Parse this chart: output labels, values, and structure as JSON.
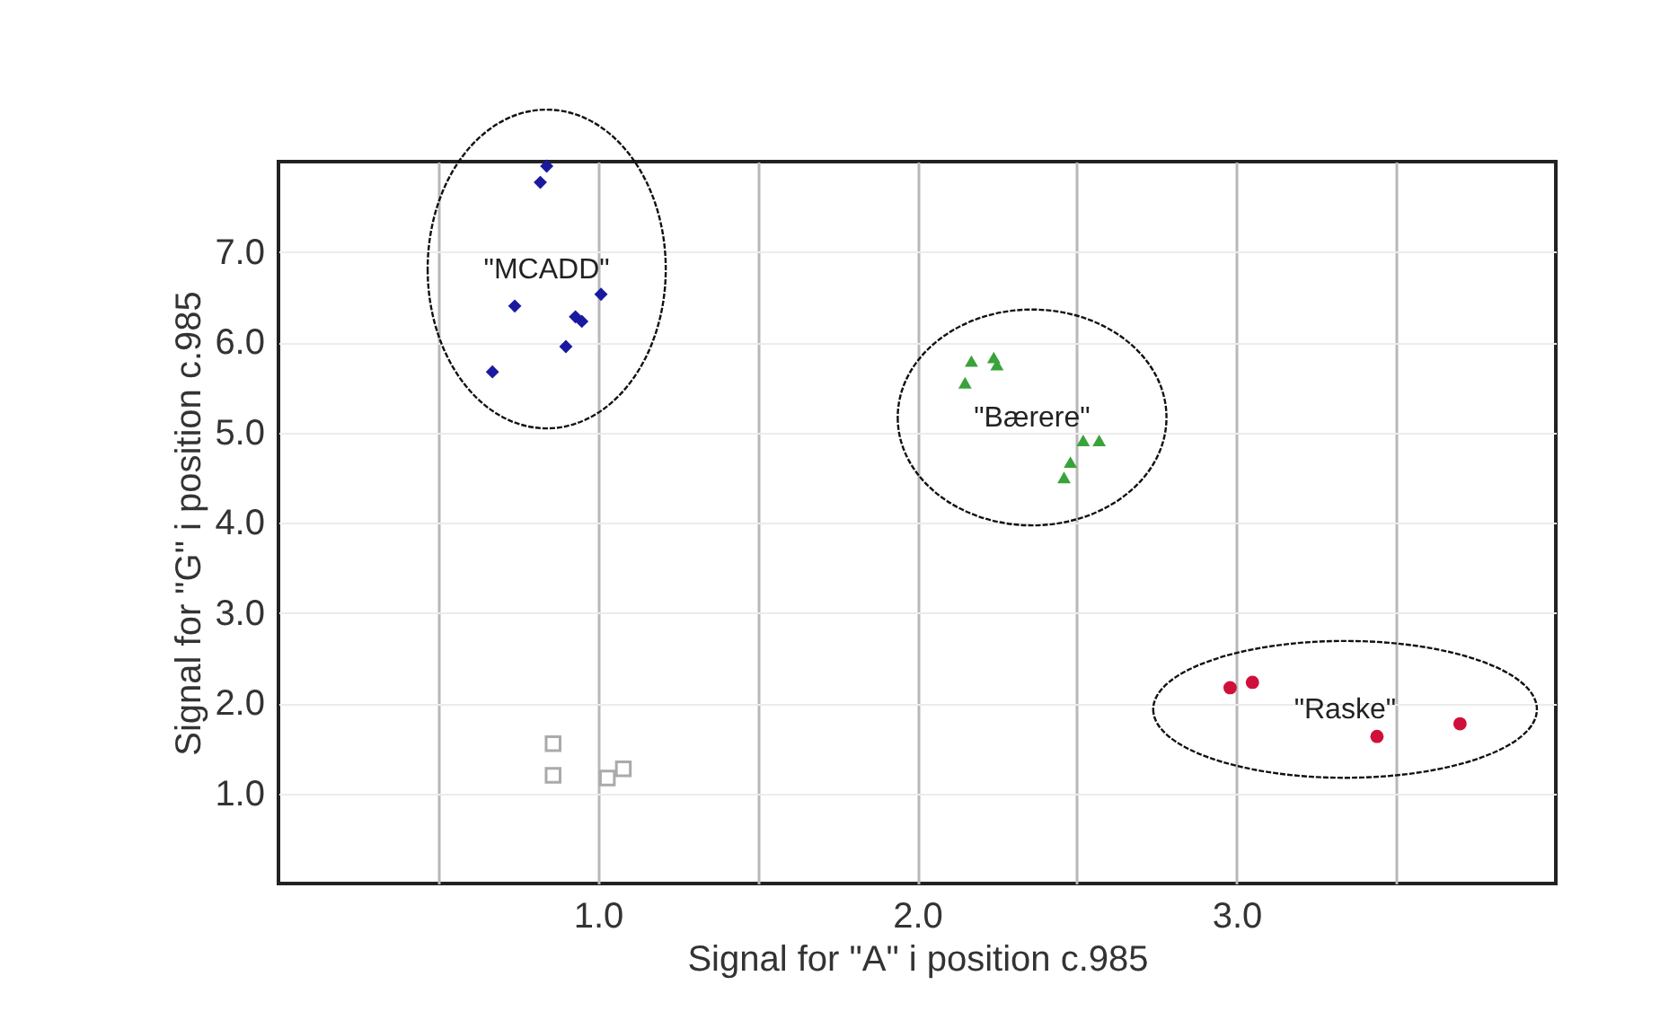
{
  "chart_data": {
    "type": "scatter",
    "xlabel": "Signal for \"A\" i position c.985",
    "ylabel": "Signal for \"G\" i position c.985",
    "xlim": [
      0,
      4
    ],
    "ylim": [
      0,
      8
    ],
    "xticks": [
      {
        "value": 0.5,
        "label": null
      },
      {
        "value": 1,
        "label": "1.0"
      },
      {
        "value": 1.5,
        "label": null
      },
      {
        "value": 2,
        "label": "2.0"
      },
      {
        "value": 2.5,
        "label": null
      },
      {
        "value": 3,
        "label": "3.0"
      },
      {
        "value": 3.5,
        "label": null
      }
    ],
    "yticks": [
      {
        "value": 1,
        "label": "1.0"
      },
      {
        "value": 2,
        "label": "2.0"
      },
      {
        "value": 3,
        "label": "3.0"
      },
      {
        "value": 4,
        "label": "4.0"
      },
      {
        "value": 5,
        "label": "5.0"
      },
      {
        "value": 6,
        "label": "6.0"
      },
      {
        "value": 7,
        "label": "7.0"
      }
    ],
    "grid": true,
    "series": [
      {
        "color": "#1a1aa0",
        "marker": "diamond",
        "x": [
          0.84,
          0.82,
          0.74,
          1.01,
          0.93,
          0.95,
          0.9,
          0.67
        ],
        "values": [
          7.95,
          7.77,
          6.4,
          6.53,
          6.28,
          6.23,
          5.95,
          5.67
        ]
      },
      {
        "color": "#3aa23a",
        "marker": "triangle",
        "x": [
          2.17,
          2.24,
          2.25,
          2.15,
          2.52,
          2.57,
          2.48,
          2.46
        ],
        "values": [
          5.79,
          5.83,
          5.75,
          5.55,
          4.91,
          4.91,
          4.67,
          4.5
        ]
      },
      {
        "color": "#d0103a",
        "marker": "circle",
        "x": [
          2.98,
          3.05,
          3.44,
          3.7
        ],
        "values": [
          2.17,
          2.23,
          1.63,
          1.77
        ]
      },
      {
        "color": "#aaaaaa",
        "marker": "square",
        "x": [
          0.86,
          0.86,
          1.03,
          1.08
        ],
        "values": [
          1.55,
          1.2,
          1.17,
          1.27
        ]
      }
    ],
    "annotations": [
      "\"MCADD\"",
      "\"Bærere\"",
      "\"Raske\""
    ]
  }
}
